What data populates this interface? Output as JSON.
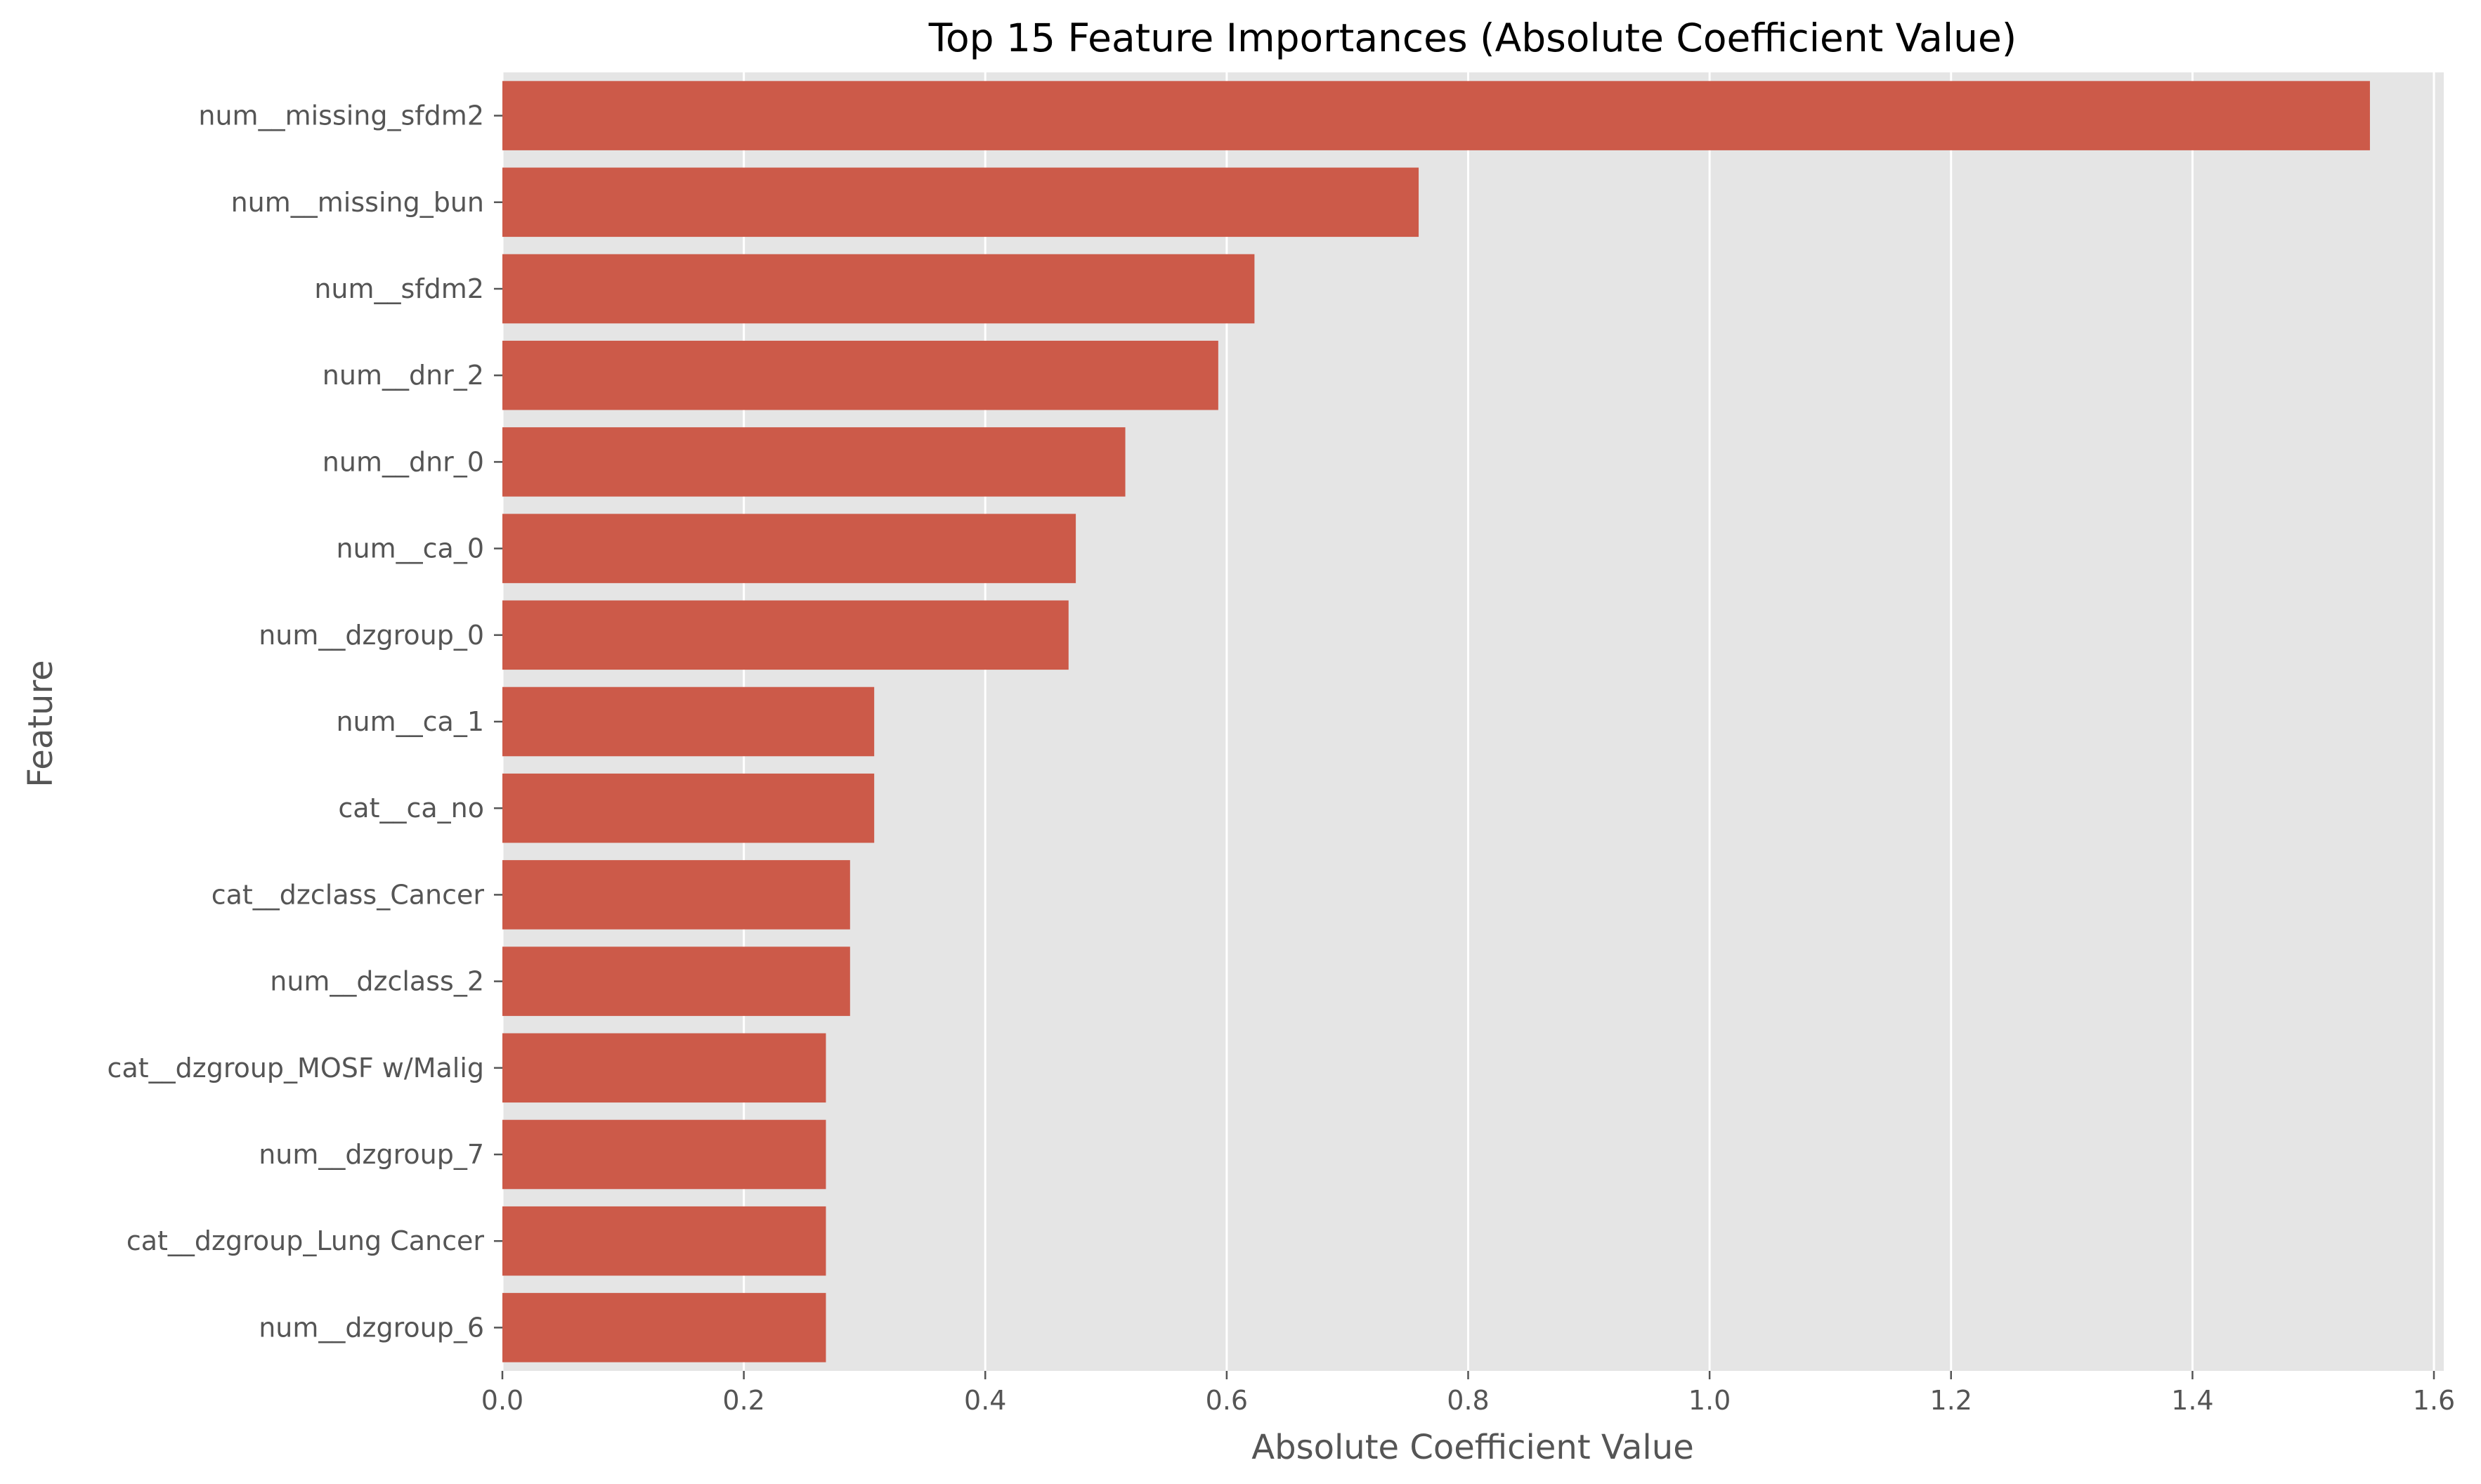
{
  "chart_data": {
    "type": "bar",
    "orientation": "horizontal",
    "title": "Top 15 Feature Importances (Absolute Coefficient Value)",
    "xlabel": "Absolute Coefficient Value",
    "ylabel": "Feature",
    "xlim": [
      0,
      1.6
    ],
    "xticks": [
      "0.0",
      "0.2",
      "0.4",
      "0.6",
      "0.8",
      "1.0",
      "1.2",
      "1.4",
      "1.6"
    ],
    "grid": true,
    "bar_color": "#cc5a49",
    "background_color": "#e5e5e5",
    "categories": [
      "num__missing_sfdm2",
      "num__missing_bun",
      "num__sfdm2",
      "num__dnr_2",
      "num__dnr_0",
      "num__ca_0",
      "num__dzgroup_0",
      "num__ca_1",
      "cat__ca_no",
      "cat__dzclass_Cancer",
      "num__dzclass_2",
      "cat__dzgroup_MOSF w/Malig",
      "num__dzgroup_7",
      "cat__dzgroup_Lung Cancer",
      "num__dzgroup_6"
    ],
    "values": [
      1.547,
      0.759,
      0.623,
      0.593,
      0.516,
      0.475,
      0.469,
      0.308,
      0.308,
      0.288,
      0.288,
      0.268,
      0.268,
      0.268,
      0.268
    ]
  }
}
